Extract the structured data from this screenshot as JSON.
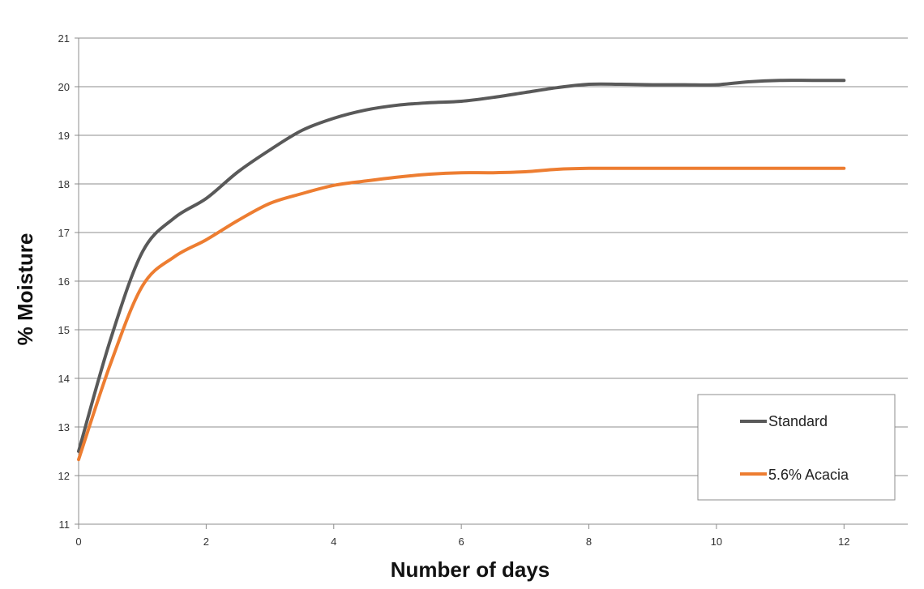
{
  "chart_data": {
    "type": "line",
    "title": "",
    "xlabel": "Number of days",
    "ylabel": "% Moisture",
    "xlim": [
      0,
      13
    ],
    "ylim": [
      11,
      21
    ],
    "x_ticks": [
      0,
      2,
      4,
      6,
      8,
      10,
      12
    ],
    "y_ticks": [
      11,
      12,
      13,
      14,
      15,
      16,
      17,
      18,
      19,
      20,
      21
    ],
    "grid": "horizontal",
    "legend_position": "bottom-right",
    "series": [
      {
        "name": "Standard",
        "color": "#595959",
        "x": [
          0,
          0.5,
          1,
          1.5,
          2,
          2.5,
          3,
          3.5,
          4,
          4.5,
          5,
          5.5,
          6,
          6.5,
          7,
          7.5,
          8,
          8.5,
          9,
          9.5,
          10,
          10.5,
          11,
          11.5,
          12
        ],
        "y": [
          12.5,
          14.8,
          16.6,
          17.3,
          17.7,
          18.25,
          18.7,
          19.1,
          19.35,
          19.52,
          19.62,
          19.67,
          19.7,
          19.78,
          19.88,
          19.98,
          20.05,
          20.05,
          20.04,
          20.04,
          20.04,
          20.1,
          20.13,
          20.13,
          20.13
        ]
      },
      {
        "name": "5.6% Acacia",
        "color": "#ED7D31",
        "x": [
          0,
          0.5,
          1,
          1.5,
          2,
          2.5,
          3,
          3.5,
          4,
          4.5,
          5,
          5.5,
          6,
          6.5,
          7,
          7.5,
          8,
          8.5,
          9,
          9.5,
          10,
          10.5,
          11,
          11.5,
          12
        ],
        "y": [
          12.33,
          14.3,
          15.9,
          16.5,
          16.85,
          17.25,
          17.6,
          17.8,
          17.97,
          18.06,
          18.14,
          18.2,
          18.23,
          18.23,
          18.25,
          18.3,
          18.32,
          18.32,
          18.32,
          18.32,
          18.32,
          18.32,
          18.32,
          18.32,
          18.32
        ]
      }
    ]
  }
}
